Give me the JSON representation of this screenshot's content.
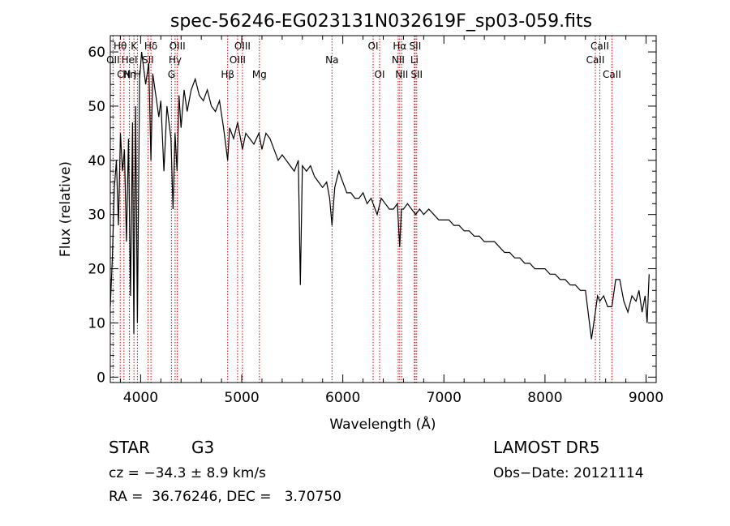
{
  "chart_data": {
    "type": "line",
    "title": "spec-56246-EG023131N032619F_sp03-059.fits",
    "xlabel": "Wavelength (Å)",
    "ylabel": "Flux (relative)",
    "xlim": [
      3700,
      9100
    ],
    "ylim": [
      -1,
      63
    ],
    "xticks": [
      4000,
      5000,
      6000,
      7000,
      8000,
      9000
    ],
    "yticks": [
      0,
      10,
      20,
      30,
      40,
      50,
      60
    ],
    "grid": false,
    "line_color": "#000000",
    "marker_color": "#cc0000",
    "spectrum": {
      "x": [
        3700,
        3720,
        3740,
        3760,
        3780,
        3800,
        3820,
        3840,
        3860,
        3880,
        3900,
        3920,
        3933,
        3950,
        3968,
        3990,
        4010,
        4030,
        4050,
        4080,
        4102,
        4120,
        4150,
        4180,
        4200,
        4230,
        4260,
        4300,
        4320,
        4340,
        4360,
        4380,
        4400,
        4430,
        4460,
        4500,
        4540,
        4580,
        4620,
        4660,
        4700,
        4740,
        4780,
        4820,
        4861,
        4880,
        4920,
        4960,
        5007,
        5040,
        5080,
        5120,
        5170,
        5200,
        5240,
        5280,
        5320,
        5360,
        5400,
        5440,
        5480,
        5520,
        5560,
        5580,
        5600,
        5640,
        5680,
        5720,
        5760,
        5800,
        5840,
        5870,
        5893,
        5920,
        5960,
        6000,
        6040,
        6080,
        6120,
        6160,
        6200,
        6240,
        6280,
        6300,
        6340,
        6380,
        6420,
        6460,
        6500,
        6540,
        6563,
        6580,
        6600,
        6640,
        6680,
        6720,
        6760,
        6800,
        6850,
        6900,
        6950,
        7000,
        7050,
        7100,
        7150,
        7200,
        7250,
        7300,
        7350,
        7400,
        7450,
        7500,
        7550,
        7600,
        7650,
        7700,
        7750,
        7800,
        7850,
        7900,
        7950,
        8000,
        8050,
        8100,
        8150,
        8200,
        8250,
        8300,
        8350,
        8400,
        8440,
        8460,
        8498,
        8520,
        8542,
        8580,
        8620,
        8662,
        8700,
        8740,
        8780,
        8820,
        8860,
        8900,
        8930,
        8960,
        8990,
        9010,
        9030
      ],
      "y": [
        13,
        22,
        35,
        40,
        28,
        45,
        38,
        42,
        25,
        44,
        15,
        47,
        8,
        50,
        10,
        55,
        60,
        57,
        54,
        58,
        40,
        56,
        52,
        48,
        51,
        38,
        50,
        44,
        31,
        45,
        38,
        52,
        46,
        53,
        49,
        53,
        55,
        52,
        51,
        53,
        50,
        49,
        51,
        46,
        40,
        46,
        44,
        47,
        42,
        45,
        44,
        43,
        45,
        42,
        45,
        44,
        42,
        40,
        41,
        40,
        39,
        38,
        40,
        17,
        39,
        38,
        39,
        37,
        36,
        35,
        36,
        33,
        28,
        35,
        38,
        36,
        34,
        34,
        33,
        33,
        34,
        32,
        33,
        32,
        30,
        33,
        32,
        31,
        31,
        32,
        24,
        31,
        31,
        32,
        31,
        30,
        31,
        30,
        31,
        30,
        29,
        29,
        29,
        28,
        28,
        27,
        27,
        26,
        26,
        25,
        25,
        25,
        24,
        23,
        23,
        22,
        22,
        21,
        21,
        20,
        20,
        20,
        19,
        19,
        18,
        18,
        17,
        17,
        16,
        16,
        10,
        7,
        12,
        15,
        14,
        15,
        13,
        13,
        18,
        18,
        14,
        12,
        15,
        14,
        16,
        12,
        15,
        10,
        19
      ]
    },
    "lines": [
      {
        "label": "Hθ",
        "x": 3798,
        "row": 1
      },
      {
        "label": "OII",
        "x": 3727,
        "row": 2
      },
      {
        "label": "CN",
        "x": 3835,
        "row": 3
      },
      {
        "label": "Hη",
        "x": 3889,
        "row": 3
      },
      {
        "label": "HeI",
        "x": 3889,
        "row": 2
      },
      {
        "label": "K",
        "x": 3934,
        "row": 1
      },
      {
        "label": "H",
        "x": 3968,
        "row": 3
      },
      {
        "label": "SII",
        "x": 4072,
        "row": 2
      },
      {
        "label": "Hδ",
        "x": 4102,
        "row": 1
      },
      {
        "label": "G",
        "x": 4305,
        "row": 3
      },
      {
        "label": "Hγ",
        "x": 4341,
        "row": 2
      },
      {
        "label": "OIII",
        "x": 4363,
        "row": 1
      },
      {
        "label": "Hβ",
        "x": 4861,
        "row": 3
      },
      {
        "label": "OIII",
        "x": 4959,
        "row": 2
      },
      {
        "label": "OIII",
        "x": 5007,
        "row": 1
      },
      {
        "label": "Mg",
        "x": 5175,
        "row": 3
      },
      {
        "label": "Na",
        "x": 5893,
        "row": 2
      },
      {
        "label": "OI",
        "x": 6300,
        "row": 1
      },
      {
        "label": "OI",
        "x": 6364,
        "row": 3
      },
      {
        "label": "NII",
        "x": 6548,
        "row": 2
      },
      {
        "label": "Hα",
        "x": 6563,
        "row": 1
      },
      {
        "label": "NII",
        "x": 6583,
        "row": 3
      },
      {
        "label": "Li",
        "x": 6708,
        "row": 2
      },
      {
        "label": "SII",
        "x": 6716,
        "row": 1
      },
      {
        "label": "SII",
        "x": 6731,
        "row": 3
      },
      {
        "label": "CaII",
        "x": 8498,
        "row": 2
      },
      {
        "label": "CaII",
        "x": 8542,
        "row": 1
      },
      {
        "label": "CaII",
        "x": 8662,
        "row": 3
      }
    ]
  },
  "info": {
    "object_type": "STAR",
    "subclass": "G3",
    "survey": "LAMOST DR5",
    "cz_line": "cz = −34.3 ± 8.9 km/s",
    "obs_date": "Obs−Date: 20121114",
    "coords": "RA =  36.76246, DEC =   3.70750"
  }
}
